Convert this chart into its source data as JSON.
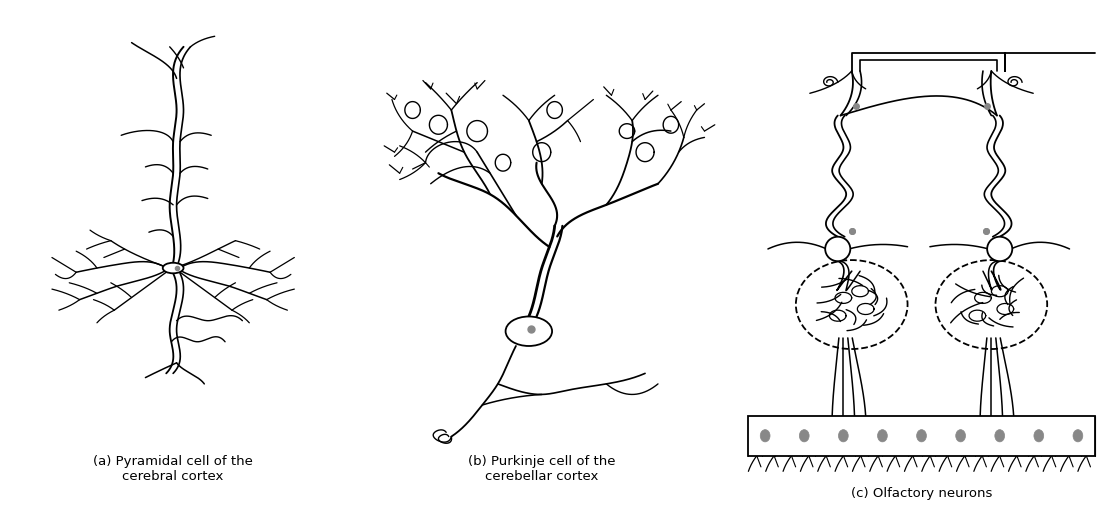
{
  "title_a": "(a) Pyramidal cell of the\ncerebral cortex",
  "title_b": "(b) Purkinje cell of the\ncerebellar cortex",
  "title_c": "(c) Olfactory neurons",
  "bg_color": "#ffffff",
  "line_color": "#000000",
  "gray_dot": "#888888",
  "fig_width": 11.17,
  "fig_height": 5.15,
  "label_fontsize": 9.5
}
